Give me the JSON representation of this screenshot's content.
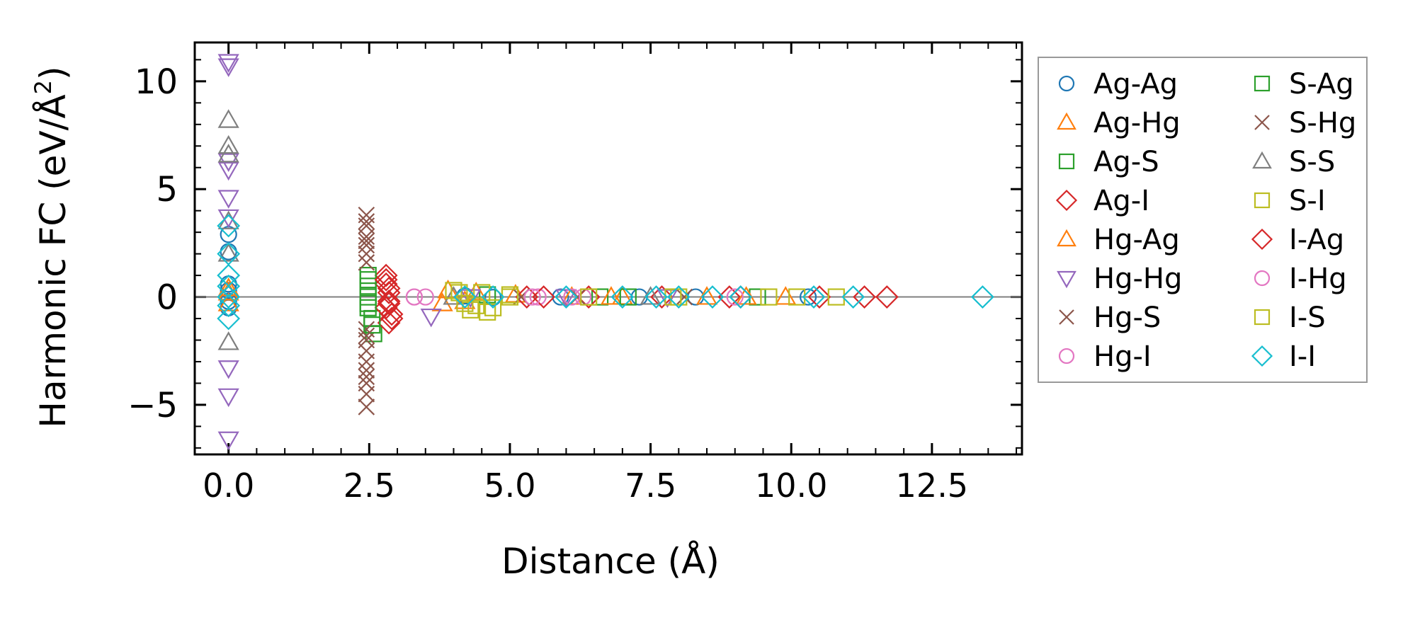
{
  "chart_data": {
    "type": "scatter",
    "title": "",
    "xlabel": "Distance (Å)",
    "ylabel_main": "Harmonic FC (eV/Å",
    "ylabel_sup": "2",
    "ylabel_close": ")",
    "xlim": [
      -0.6,
      14.1
    ],
    "ylim": [
      -7.3,
      11.8
    ],
    "x_ticks": [
      0.0,
      2.5,
      5.0,
      7.5,
      10.0,
      12.5
    ],
    "x_tick_labels": [
      "0.0",
      "2.5",
      "5.0",
      "7.5",
      "10.0",
      "12.5"
    ],
    "y_ticks": [
      -5,
      0,
      5,
      10
    ],
    "y_tick_labels": [
      "−5",
      "0",
      "5",
      "10"
    ],
    "legend_position": "outside-right",
    "series": [
      {
        "name": "Ag-Ag",
        "marker": "circle",
        "color": "#1f77b4",
        "points": [
          [
            0,
            2.9
          ],
          [
            0,
            2.1
          ],
          [
            0,
            0.6
          ],
          [
            0,
            0.3
          ],
          [
            0,
            -0.2
          ],
          [
            0,
            -0.5
          ],
          [
            4.2,
            0.05
          ],
          [
            4.7,
            -0.02
          ],
          [
            5.9,
            0.0
          ],
          [
            7.3,
            0.0
          ],
          [
            8.3,
            0.0
          ],
          [
            10.3,
            0.0
          ]
        ]
      },
      {
        "name": "Ag-Hg",
        "marker": "triangle-up",
        "color": "#ff7f0e",
        "points": [
          [
            0,
            0.4
          ],
          [
            0,
            -0.3
          ],
          [
            3.9,
            0.3
          ],
          [
            4.2,
            -0.2
          ],
          [
            5.1,
            0.1
          ],
          [
            6.1,
            0.0
          ],
          [
            7.0,
            0.0
          ],
          [
            8.5,
            0.0
          ],
          [
            9.9,
            0.0
          ]
        ]
      },
      {
        "name": "Ag-S",
        "marker": "square",
        "color": "#2ca02c",
        "points": [
          [
            2.48,
            1.0
          ],
          [
            2.48,
            0.5
          ],
          [
            2.48,
            0.0
          ],
          [
            2.48,
            -0.5
          ],
          [
            2.55,
            -1.0
          ],
          [
            2.58,
            -1.7
          ],
          [
            4.6,
            0.1
          ],
          [
            6.6,
            0.0
          ],
          [
            9.4,
            0.0
          ]
        ]
      },
      {
        "name": "Ag-I",
        "marker": "diamond",
        "color": "#d62728",
        "points": [
          [
            2.8,
            1.0
          ],
          [
            2.8,
            0.6
          ],
          [
            2.85,
            0.2
          ],
          [
            2.85,
            -0.2
          ],
          [
            2.8,
            -0.5
          ],
          [
            2.9,
            -0.8
          ],
          [
            2.85,
            -1.2
          ],
          [
            5.3,
            0.0
          ],
          [
            6.4,
            0.0
          ],
          [
            7.7,
            0.0
          ],
          [
            8.9,
            0.0
          ],
          [
            10.5,
            0.0
          ],
          [
            11.7,
            0.0
          ]
        ]
      },
      {
        "name": "Hg-Ag",
        "marker": "triangle-up",
        "color": "#ff7f0e",
        "points": [
          [
            0,
            0.2
          ],
          [
            3.8,
            -0.3
          ],
          [
            4.4,
            0.2
          ],
          [
            6.8,
            0.0
          ],
          [
            9.2,
            0.0
          ]
        ]
      },
      {
        "name": "Hg-Hg",
        "marker": "triangle-down",
        "color": "#9467bd",
        "points": [
          [
            0,
            10.9
          ],
          [
            0,
            10.7
          ],
          [
            0,
            6.3
          ],
          [
            0,
            5.9
          ],
          [
            0,
            4.6
          ],
          [
            0,
            3.7
          ],
          [
            0,
            -3.3
          ],
          [
            0,
            -4.6
          ],
          [
            0,
            -6.6
          ],
          [
            3.6,
            -0.9
          ],
          [
            4.3,
            0.0
          ],
          [
            6.0,
            0.0
          ],
          [
            7.8,
            0.0
          ]
        ]
      },
      {
        "name": "Hg-S",
        "marker": "x",
        "color": "#8c564b",
        "points": [
          [
            2.45,
            3.8
          ],
          [
            2.45,
            3.3
          ],
          [
            2.45,
            2.8
          ],
          [
            2.45,
            2.4
          ],
          [
            2.45,
            2.0
          ],
          [
            2.45,
            1.6
          ],
          [
            2.45,
            -1.5
          ],
          [
            2.45,
            -2.0
          ],
          [
            2.45,
            -2.5
          ],
          [
            2.45,
            -3.0
          ],
          [
            2.45,
            -3.4
          ],
          [
            2.45,
            -4.0
          ],
          [
            2.45,
            -4.5
          ],
          [
            2.45,
            -5.1
          ],
          [
            5.2,
            0.0
          ],
          [
            8.1,
            0.0
          ]
        ]
      },
      {
        "name": "Hg-I",
        "marker": "circle",
        "color": "#e377c2",
        "points": [
          [
            3.3,
            0.0
          ],
          [
            3.5,
            0.0
          ],
          [
            5.5,
            0.0
          ],
          [
            6.3,
            0.0
          ],
          [
            9.0,
            0.0
          ]
        ]
      },
      {
        "name": "S-Ag",
        "marker": "square",
        "color": "#2ca02c",
        "points": [
          [
            2.48,
            0.8
          ],
          [
            2.48,
            -0.3
          ],
          [
            2.55,
            -1.3
          ],
          [
            7.1,
            0.0
          ]
        ]
      },
      {
        "name": "S-Hg",
        "marker": "x",
        "color": "#8c564b",
        "points": [
          [
            2.45,
            3.5
          ],
          [
            2.45,
            2.6
          ],
          [
            2.45,
            -1.8
          ],
          [
            2.45,
            -3.7
          ],
          [
            6.2,
            0.0
          ]
        ]
      },
      {
        "name": "S-S",
        "marker": "triangle-up",
        "color": "#7f7f7f",
        "points": [
          [
            0,
            8.2
          ],
          [
            0,
            7.0
          ],
          [
            0,
            6.6
          ],
          [
            0,
            3.5
          ],
          [
            0,
            2.0
          ],
          [
            0,
            -2.1
          ],
          [
            4.0,
            0.0
          ],
          [
            7.5,
            0.0
          ]
        ]
      },
      {
        "name": "S-I",
        "marker": "square",
        "color": "#bcbd22",
        "points": [
          [
            4.0,
            0.3
          ],
          [
            4.2,
            -0.3
          ],
          [
            4.3,
            -0.6
          ],
          [
            4.5,
            0.2
          ],
          [
            4.7,
            -0.5
          ],
          [
            5.0,
            0.1
          ],
          [
            6.4,
            0.0
          ],
          [
            8.0,
            0.0
          ],
          [
            9.6,
            0.0
          ],
          [
            10.8,
            0.0
          ]
        ]
      },
      {
        "name": "I-Ag",
        "marker": "diamond",
        "color": "#d62728",
        "points": [
          [
            2.8,
            0.8
          ],
          [
            2.85,
            0.4
          ],
          [
            2.85,
            -0.3
          ],
          [
            2.9,
            -1.0
          ],
          [
            5.6,
            0.0
          ],
          [
            9.1,
            0.0
          ],
          [
            11.3,
            0.0
          ]
        ]
      },
      {
        "name": "I-Hg",
        "marker": "circle",
        "color": "#e377c2",
        "points": [
          [
            3.3,
            0.0
          ],
          [
            5.4,
            0.0
          ],
          [
            6.1,
            0.0
          ]
        ]
      },
      {
        "name": "I-S",
        "marker": "square",
        "color": "#bcbd22",
        "points": [
          [
            4.1,
            0.2
          ],
          [
            4.4,
            -0.4
          ],
          [
            4.6,
            -0.7
          ],
          [
            5.0,
            0.0
          ],
          [
            7.9,
            0.0
          ],
          [
            10.1,
            0.0
          ]
        ]
      },
      {
        "name": "I-I",
        "marker": "diamond",
        "color": "#17becf",
        "points": [
          [
            0,
            3.3
          ],
          [
            0,
            2.0
          ],
          [
            0,
            1.0
          ],
          [
            0,
            0.5
          ],
          [
            0,
            0.0
          ],
          [
            0,
            -0.4
          ],
          [
            0,
            -1.0
          ],
          [
            4.2,
            0.0
          ],
          [
            4.7,
            0.0
          ],
          [
            6.0,
            0.0
          ],
          [
            7.0,
            0.0
          ],
          [
            7.6,
            0.0
          ],
          [
            8.0,
            0.0
          ],
          [
            8.6,
            0.0
          ],
          [
            9.1,
            0.0
          ],
          [
            10.4,
            0.0
          ],
          [
            11.1,
            0.0
          ],
          [
            13.4,
            0.0
          ]
        ]
      }
    ]
  }
}
